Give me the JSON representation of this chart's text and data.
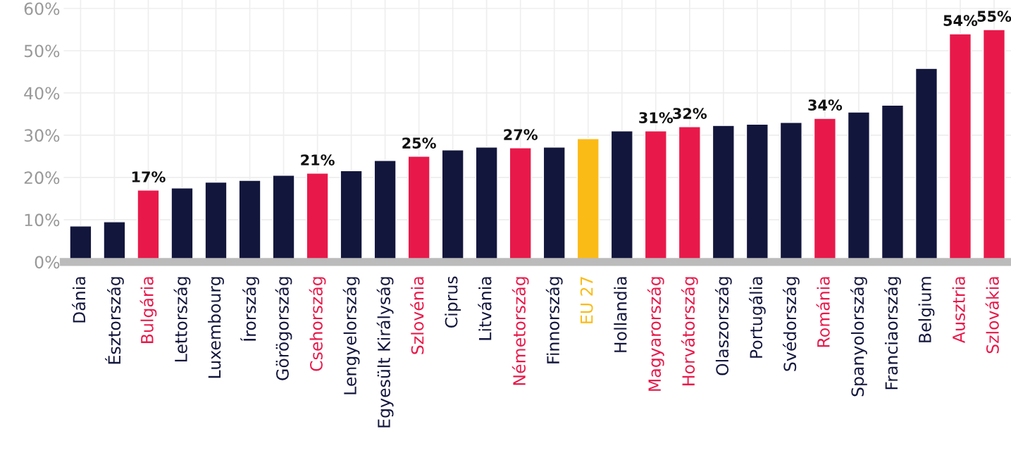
{
  "chart_data": {
    "type": "bar",
    "categories": [
      "Dánia",
      "Észtország",
      "Bulgária",
      "Lettország",
      "Luxembourg",
      "Írország",
      "Görögország",
      "Csehország",
      "Lengyelország",
      "Egyesült Királyság",
      "Szlovénia",
      "Ciprus",
      "Litvánia",
      "Németország",
      "Finnország",
      "EU 27",
      "Hollandia",
      "Magyarország",
      "Horvátország",
      "Olaszország",
      "Portugália",
      "Svédország",
      "Románia",
      "Spanyolország",
      "Franciaország",
      "Belgium",
      "Ausztria",
      "Szlovákia"
    ],
    "values": [
      8.5,
      9.5,
      17,
      17.5,
      18.9,
      19.3,
      20.5,
      21,
      21.6,
      24,
      25,
      26.5,
      27.2,
      27,
      27.2,
      29.2,
      31,
      31,
      32,
      32.3,
      32.6,
      33,
      34,
      35.5,
      37.1,
      45.8,
      54,
      55
    ],
    "colors": [
      "#13163c",
      "#13163c",
      "#e8194a",
      "#13163c",
      "#13163c",
      "#13163c",
      "#13163c",
      "#e8194a",
      "#13163c",
      "#13163c",
      "#e8194a",
      "#13163c",
      "#13163c",
      "#e8194a",
      "#13163c",
      "#fbbb16",
      "#13163c",
      "#e8194a",
      "#e8194a",
      "#13163c",
      "#13163c",
      "#13163c",
      "#e8194a",
      "#13163c",
      "#13163c",
      "#13163c",
      "#e8194a",
      "#e8194a"
    ],
    "value_labels": [
      null,
      null,
      "17%",
      null,
      null,
      null,
      null,
      "21%",
      null,
      null,
      "25%",
      null,
      null,
      "27%",
      null,
      null,
      null,
      "31%",
      "32%",
      null,
      null,
      null,
      "34%",
      null,
      null,
      null,
      "54%",
      "55%"
    ],
    "ylim": [
      0,
      62
    ],
    "yticks": [
      {
        "value": 0,
        "label": "0%"
      },
      {
        "value": 10,
        "label": "10%"
      },
      {
        "value": 20,
        "label": "20%"
      },
      {
        "value": 30,
        "label": "30%"
      },
      {
        "value": 40,
        "label": "40%"
      },
      {
        "value": 50,
        "label": "50%"
      },
      {
        "value": 60,
        "label": "60%"
      }
    ],
    "grid": true,
    "legend": false
  }
}
